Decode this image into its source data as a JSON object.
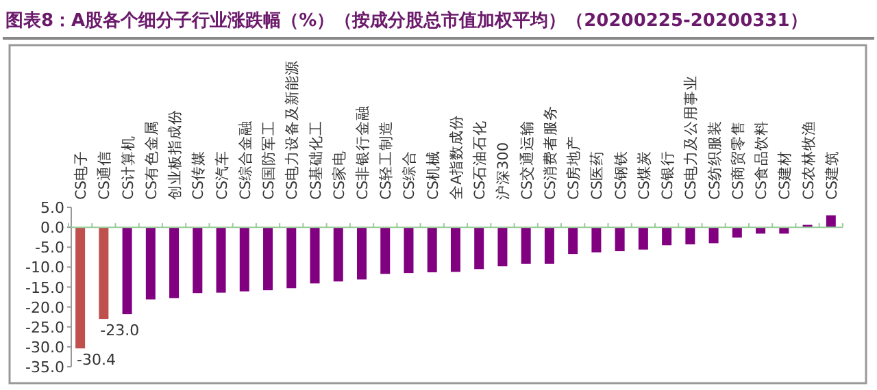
{
  "chart_data": {
    "type": "bar",
    "title": "图表8：A股各个细分子行业涨跌幅（%）（按成分股总市值加权平均）（20200225-20200331）",
    "categories": [
      "CS电子",
      "CS通信",
      "CS计算机",
      "CS有色金属",
      "创业板指成份",
      "CS传媒",
      "CS汽车",
      "CS综合金融",
      "CS国防军工",
      "CS电力设备及新能源",
      "CS基础化工",
      "CS家电",
      "CS非银行金融",
      "CS轻工制造",
      "CS综合",
      "CS机械",
      "全A指数成份",
      "CS石油石化",
      "沪深300",
      "CS交通运输",
      "CS消费者服务",
      "CS房地产",
      "CS医药",
      "CS钢铁",
      "CS煤炭",
      "CS银行",
      "CS电力及公用事业",
      "CS纺织服装",
      "CS商贸零售",
      "CS食品饮料",
      "CS建材",
      "CS农林牧渔",
      "CS建筑"
    ],
    "values": [
      -30.4,
      -23.0,
      -21.8,
      -18.1,
      -17.8,
      -16.5,
      -16.4,
      -16.1,
      -15.8,
      -15.3,
      -14.1,
      -13.6,
      -13.1,
      -11.7,
      -11.5,
      -11.3,
      -11.2,
      -10.5,
      -9.8,
      -9.2,
      -9.2,
      -6.7,
      -6.3,
      -6.0,
      -5.6,
      -4.5,
      -4.3,
      -4.0,
      -2.6,
      -1.6,
      -1.6,
      0.6,
      3.0
    ],
    "colors": [
      "#c0504d",
      "#c0504d",
      "#800080",
      "#800080",
      "#800080",
      "#800080",
      "#800080",
      "#800080",
      "#800080",
      "#800080",
      "#800080",
      "#800080",
      "#800080",
      "#800080",
      "#800080",
      "#800080",
      "#800080",
      "#800080",
      "#800080",
      "#800080",
      "#800080",
      "#800080",
      "#800080",
      "#800080",
      "#800080",
      "#800080",
      "#800080",
      "#800080",
      "#800080",
      "#800080",
      "#800080",
      "#800080",
      "#800080"
    ],
    "value_labels": [
      "-30.4",
      "-23.0",
      null,
      null,
      null,
      null,
      null,
      null,
      null,
      null,
      null,
      null,
      null,
      null,
      null,
      null,
      null,
      null,
      null,
      null,
      null,
      null,
      null,
      null,
      null,
      null,
      null,
      null,
      null,
      null,
      null,
      null,
      null
    ],
    "ylim": [
      -35,
      5
    ],
    "yticks": [
      {
        "value": 5,
        "label": "5.0"
      },
      {
        "value": 0,
        "label": "0.0"
      },
      {
        "value": -5,
        "label": "-5.0"
      },
      {
        "value": -10,
        "label": "-10.0"
      },
      {
        "value": -15,
        "label": "-15.0"
      },
      {
        "value": -20,
        "label": "-20.0"
      },
      {
        "value": -25,
        "label": "-25.0"
      },
      {
        "value": -30,
        "label": "-30.0"
      },
      {
        "value": -35,
        "label": "-35.0"
      }
    ]
  }
}
